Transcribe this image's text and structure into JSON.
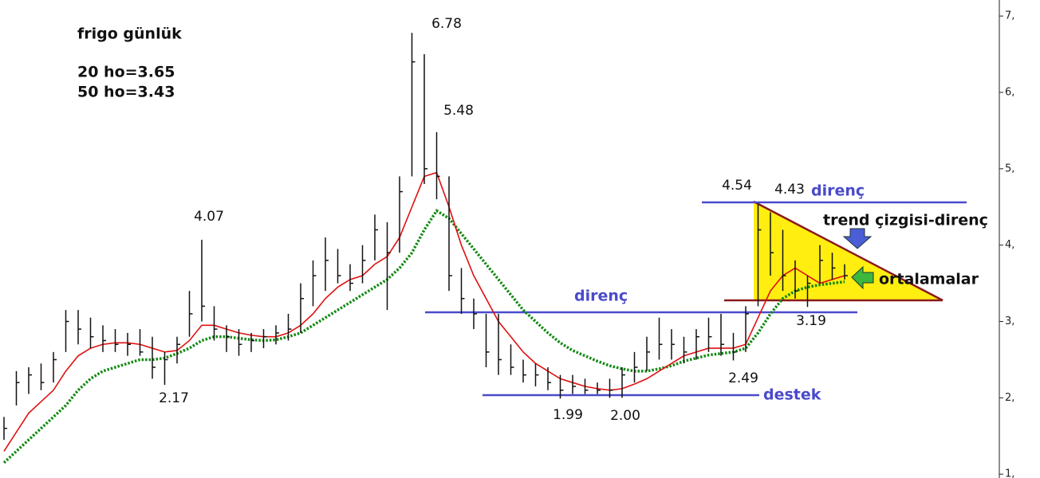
{
  "chart_data": {
    "type": "ohlc",
    "title": "frigo günlük",
    "subtitle": [
      "20 ho=3.65",
      "50 ho=3.43"
    ],
    "high": [
      1.75,
      2.35,
      2.4,
      2.45,
      2.6,
      3.15,
      3.15,
      3.05,
      2.95,
      2.9,
      2.85,
      2.9,
      2.8,
      2.6,
      2.8,
      3.4,
      4.07,
      3.2,
      2.95,
      2.9,
      2.85,
      2.9,
      2.95,
      3.1,
      3.5,
      3.8,
      4.1,
      3.95,
      3.75,
      4.0,
      4.4,
      4.3,
      4.9,
      6.78,
      6.5,
      5.48,
      4.9,
      3.7,
      3.3,
      3.1,
      3.1,
      2.7,
      2.5,
      2.45,
      2.4,
      2.3,
      2.3,
      2.25,
      2.2,
      2.25,
      2.4,
      2.6,
      2.8,
      3.05,
      2.9,
      2.8,
      2.9,
      3.05,
      3.1,
      2.85,
      3.2,
      4.54,
      4.43,
      4.2,
      3.8,
      3.6,
      4.0,
      3.9,
      3.75
    ],
    "low": [
      1.45,
      1.9,
      2.05,
      2.1,
      2.2,
      2.6,
      2.7,
      2.65,
      2.6,
      2.6,
      2.55,
      2.55,
      2.25,
      2.17,
      2.45,
      2.8,
      3.0,
      2.75,
      2.6,
      2.55,
      2.6,
      2.65,
      2.7,
      2.75,
      2.85,
      3.2,
      3.4,
      3.5,
      3.4,
      3.5,
      3.8,
      3.15,
      3.9,
      4.9,
      4.8,
      4.6,
      3.4,
      3.1,
      2.9,
      2.4,
      2.3,
      2.3,
      2.2,
      2.15,
      2.1,
      1.99,
      2.05,
      2.05,
      2.05,
      2.0,
      2.0,
      2.2,
      2.35,
      2.5,
      2.5,
      2.45,
      2.5,
      2.6,
      2.55,
      2.49,
      2.6,
      3.2,
      3.6,
      3.4,
      3.3,
      3.19,
      3.5,
      3.55,
      3.55
    ],
    "close": [
      1.6,
      2.2,
      2.3,
      2.2,
      2.5,
      3.0,
      2.9,
      2.8,
      2.75,
      2.7,
      2.7,
      2.6,
      2.4,
      2.5,
      2.7,
      3.1,
      3.2,
      2.9,
      2.8,
      2.7,
      2.75,
      2.8,
      2.85,
      2.9,
      3.3,
      3.6,
      3.8,
      3.6,
      3.5,
      3.8,
      4.2,
      3.9,
      4.7,
      6.4,
      5.0,
      4.9,
      3.6,
      3.3,
      3.1,
      2.6,
      2.5,
      2.4,
      2.3,
      2.3,
      2.2,
      2.1,
      2.15,
      2.1,
      2.1,
      2.1,
      2.3,
      2.4,
      2.6,
      2.7,
      2.7,
      2.6,
      2.8,
      2.8,
      2.7,
      2.6,
      3.1,
      4.2,
      3.9,
      3.6,
      3.4,
      3.5,
      3.8,
      3.7,
      3.6
    ],
    "ma20": {
      "color": "#e01010",
      "values": [
        1.3,
        1.55,
        1.8,
        1.95,
        2.1,
        2.35,
        2.55,
        2.65,
        2.7,
        2.72,
        2.72,
        2.7,
        2.65,
        2.6,
        2.62,
        2.75,
        2.95,
        2.95,
        2.9,
        2.85,
        2.82,
        2.8,
        2.8,
        2.85,
        2.95,
        3.1,
        3.3,
        3.45,
        3.55,
        3.6,
        3.75,
        3.85,
        4.1,
        4.5,
        4.9,
        4.95,
        4.5,
        4.0,
        3.6,
        3.3,
        3.0,
        2.8,
        2.6,
        2.45,
        2.35,
        2.25,
        2.2,
        2.15,
        2.12,
        2.1,
        2.12,
        2.18,
        2.25,
        2.35,
        2.45,
        2.55,
        2.6,
        2.65,
        2.65,
        2.65,
        2.7,
        3.05,
        3.4,
        3.6,
        3.7,
        3.6,
        3.5,
        3.55,
        3.6
      ]
    },
    "ma50": {
      "color": "#128a12",
      "values": [
        1.15,
        1.3,
        1.45,
        1.6,
        1.75,
        1.9,
        2.1,
        2.25,
        2.35,
        2.4,
        2.45,
        2.5,
        2.5,
        2.52,
        2.58,
        2.65,
        2.75,
        2.8,
        2.8,
        2.78,
        2.76,
        2.75,
        2.76,
        2.8,
        2.85,
        2.95,
        3.05,
        3.15,
        3.25,
        3.35,
        3.45,
        3.55,
        3.7,
        3.9,
        4.2,
        4.45,
        4.35,
        4.15,
        3.95,
        3.75,
        3.55,
        3.35,
        3.15,
        3.0,
        2.85,
        2.72,
        2.62,
        2.55,
        2.48,
        2.42,
        2.38,
        2.35,
        2.35,
        2.38,
        2.42,
        2.48,
        2.52,
        2.56,
        2.58,
        2.6,
        2.65,
        2.85,
        3.1,
        3.3,
        3.4,
        3.45,
        3.48,
        3.5,
        3.52
      ]
    },
    "ylim": [
      0.95,
      7.21
    ],
    "yticks": [
      {
        "value": 1,
        "label": "1,"
      },
      {
        "value": 2,
        "label": "2,"
      },
      {
        "value": 3,
        "label": "3,"
      },
      {
        "value": 4,
        "label": "4,"
      },
      {
        "value": 5,
        "label": "5,"
      },
      {
        "value": 6,
        "label": "6,"
      },
      {
        "value": 7,
        "label": "7,"
      }
    ],
    "annotations": [
      "6.78",
      "5.48",
      "4.07",
      "2.17",
      "1.99",
      "2.00",
      "2.49",
      "3.19",
      "4.54",
      "4.43"
    ],
    "notes": [
      "direnç",
      "direnç",
      "destek",
      "trend çizgisi-direnç",
      "ortalamalar"
    ]
  }
}
